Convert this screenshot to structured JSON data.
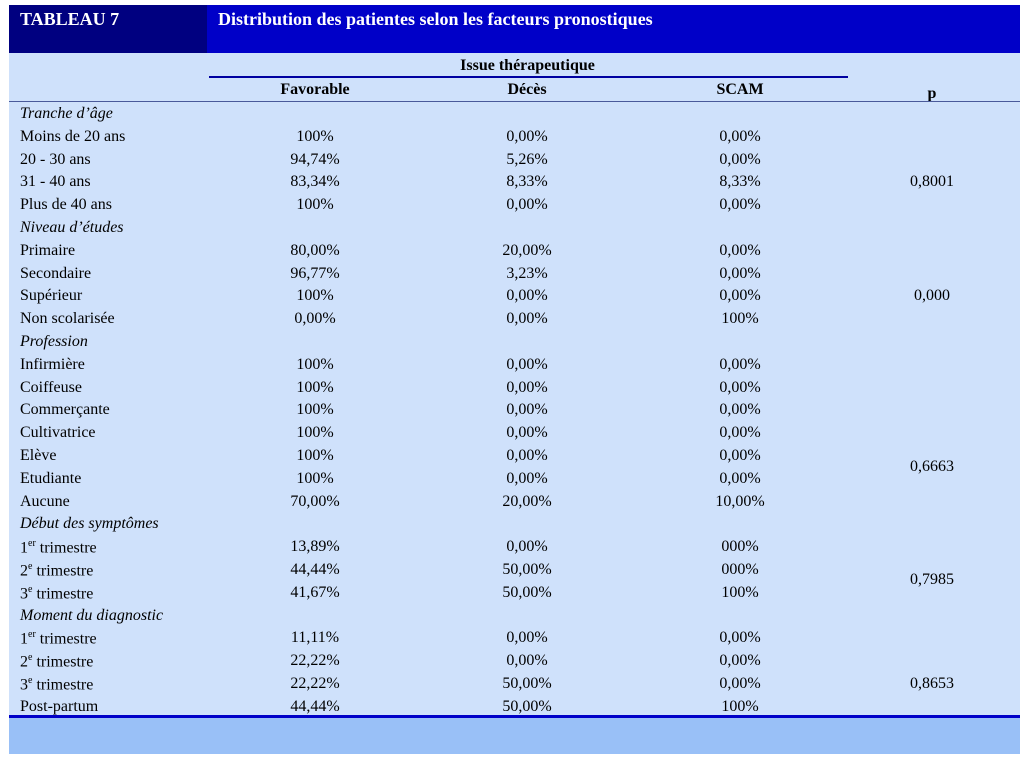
{
  "table": {
    "label": "TABLEAU 7",
    "title": "Distribution des patientes selon les facteurs pronostiques"
  },
  "headers": {
    "issue": "Issue thérapeutique",
    "favorable": "Favorable",
    "deces": "Décès",
    "scam": "SCAM",
    "p": "p"
  },
  "rows": [
    {
      "label": "Tranche d’âge",
      "group": true
    },
    {
      "label": "Moins de 20 ans",
      "favorable": "100%",
      "deces": "0,00%",
      "scam": "0,00%"
    },
    {
      "label": "20 - 30 ans",
      "favorable": "94,74%",
      "deces": "5,26%",
      "scam": "0,00%"
    },
    {
      "label": "31 - 40 ans",
      "favorable": "83,34%",
      "deces": "8,33%",
      "scam": "8,33%"
    },
    {
      "label": "Plus de 40 ans",
      "favorable": "100%",
      "deces": "0,00%",
      "scam": "0,00%"
    },
    {
      "label": "Niveau d’études",
      "group": true
    },
    {
      "label": "Primaire",
      "favorable": "80,00%",
      "deces": "20,00%",
      "scam": "0,00%"
    },
    {
      "label": "Secondaire",
      "favorable": "96,77%",
      "deces": "3,23%",
      "scam": "0,00%"
    },
    {
      "label": "Supérieur",
      "favorable": "100%",
      "deces": "0,00%",
      "scam": "0,00%"
    },
    {
      "label": "Non scolarisée",
      "favorable": "0,00%",
      "deces": "0,00%",
      "scam": "100%"
    },
    {
      "label": "Profession",
      "group": true
    },
    {
      "label": "Infirmière",
      "favorable": "100%",
      "deces": "0,00%",
      "scam": "0,00%"
    },
    {
      "label": "Coiffeuse",
      "favorable": "100%",
      "deces": "0,00%",
      "scam": "0,00%"
    },
    {
      "label": "Commerçante",
      "favorable": "100%",
      "deces": "0,00%",
      "scam": "0,00%"
    },
    {
      "label": "Cultivatrice",
      "favorable": "100%",
      "deces": "0,00%",
      "scam": "0,00%"
    },
    {
      "label": "Elève",
      "favorable": "100%",
      "deces": "0,00%",
      "scam": "0,00%"
    },
    {
      "label": "Etudiante",
      "favorable": "100%",
      "deces": "0,00%",
      "scam": "0,00%"
    },
    {
      "label": "Aucune",
      "favorable": "70,00%",
      "deces": "20,00%",
      "scam": "10,00%"
    },
    {
      "label": "Début des symptômes",
      "group": true
    },
    {
      "label": "1er trimestre",
      "favorable": "13,89%",
      "deces": "0,00%",
      "scam": "000%"
    },
    {
      "label": "2e trimestre",
      "favorable": "44,44%",
      "deces": "50,00%",
      "scam": "000%"
    },
    {
      "label": "3e trimestre",
      "favorable": "41,67%",
      "deces": "50,00%",
      "scam": "100%"
    },
    {
      "label": "Moment du diagnostic",
      "group": true
    },
    {
      "label": "1er trimestre",
      "favorable": "11,11%",
      "deces": "0,00%",
      "scam": "0,00%"
    },
    {
      "label": "2e trimestre",
      "favorable": "22,22%",
      "deces": "0,00%",
      "scam": "0,00%"
    },
    {
      "label": "3e trimestre",
      "favorable": "22,22%",
      "deces": "50,00%",
      "scam": "0,00%"
    },
    {
      "label": "Post-partum",
      "favorable": "44,44%",
      "deces": "50,00%",
      "scam": "100%"
    }
  ],
  "p_values": [
    "0,8001",
    "0,000",
    "0,6663",
    "0,7985",
    "0,8653"
  ]
}
